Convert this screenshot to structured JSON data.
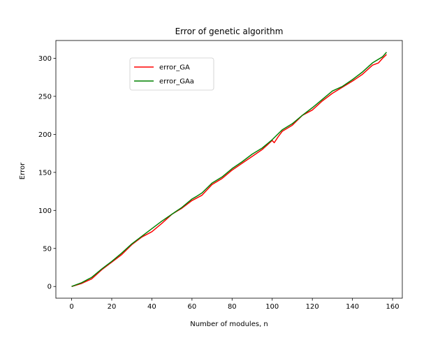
{
  "chart_data": {
    "type": "line",
    "title": "Error of genetic algorithm",
    "xlabel": "Number of modules, n",
    "ylabel": "Error",
    "xlim": [
      -7.85,
      164.85
    ],
    "ylim": [
      -15.4,
      323.4
    ],
    "xticks": [
      0,
      20,
      40,
      60,
      80,
      100,
      120,
      140,
      160
    ],
    "yticks": [
      0,
      50,
      100,
      150,
      200,
      250,
      300
    ],
    "grid": false,
    "legend": "upper-left",
    "series": [
      {
        "name": "error_GA",
        "color": "#ff0000",
        "x": [
          0,
          5,
          10,
          15,
          20,
          25,
          30,
          35,
          40,
          45,
          50,
          55,
          60,
          65,
          70,
          75,
          80,
          85,
          90,
          95,
          100,
          101,
          103,
          105,
          110,
          115,
          120,
          125,
          130,
          135,
          140,
          145,
          150,
          153,
          155,
          157
        ],
        "y": [
          0,
          4,
          10,
          22,
          32,
          42,
          55,
          65,
          72,
          83,
          95,
          103,
          113,
          120,
          134,
          142,
          153,
          162,
          171,
          180,
          192,
          189,
          197,
          204,
          212,
          225,
          232,
          244,
          254,
          262,
          270,
          279,
          291,
          294,
          300,
          305
        ]
      },
      {
        "name": "error_GAa",
        "color": "#008000",
        "x": [
          0,
          5,
          10,
          15,
          20,
          25,
          30,
          35,
          40,
          45,
          50,
          55,
          60,
          62,
          65,
          70,
          75,
          80,
          85,
          90,
          95,
          100,
          105,
          110,
          115,
          120,
          125,
          130,
          135,
          140,
          145,
          150,
          155,
          157
        ],
        "y": [
          0,
          5,
          12,
          23,
          33,
          44,
          56,
          66,
          76,
          86,
          95,
          104,
          115,
          118,
          123,
          136,
          144,
          155,
          164,
          174,
          182,
          193,
          206,
          214,
          225,
          235,
          246,
          257,
          263,
          272,
          282,
          294,
          302,
          308
        ]
      }
    ]
  }
}
